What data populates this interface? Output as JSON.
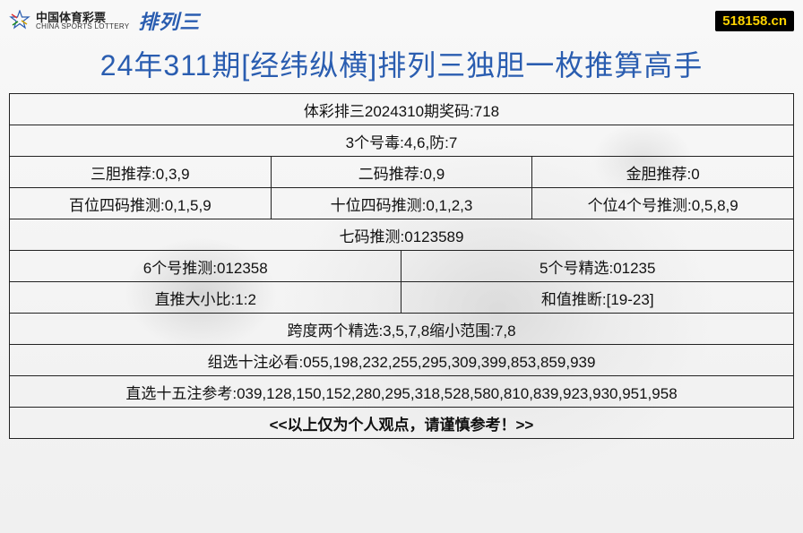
{
  "header": {
    "logo_cn": "中国体育彩票",
    "logo_en": "CHINA SPORTS LOTTERY",
    "brand": "排列三",
    "site_badge": "518158.cn"
  },
  "title": {
    "text": "24年311期[经纬纵横]排列三独胆一枚推算高手",
    "color": "#2a5db0"
  },
  "table": {
    "border_color": "#222222",
    "cell_font_size": 17,
    "rows": [
      {
        "cols": 1,
        "cells": [
          "体彩排三2024310期奖码:718"
        ]
      },
      {
        "cols": 1,
        "cells": [
          "3个号毒:4,6,防:7"
        ]
      },
      {
        "cols": 3,
        "cells": [
          "三胆推荐:0,3,9",
          "二码推荐:0,9",
          "金胆推荐:0"
        ]
      },
      {
        "cols": 3,
        "cells": [
          "百位四码推测:0,1,5,9",
          "十位四码推测:0,1,2,3",
          "个位4个号推测:0,5,8,9"
        ]
      },
      {
        "cols": 1,
        "cells": [
          "七码推测:0123589"
        ]
      },
      {
        "cols": 2,
        "cells": [
          "6个号推测:012358",
          "5个号精选:01235"
        ]
      },
      {
        "cols": 2,
        "cells": [
          "直推大小比:1:2",
          "和值推断:[19-23]"
        ]
      },
      {
        "cols": 1,
        "cells": [
          "跨度两个精选:3,5,7,8缩小范围:7,8"
        ]
      },
      {
        "cols": 1,
        "cells": [
          "组选十注必看:055,198,232,255,295,309,399,853,859,939"
        ]
      },
      {
        "cols": 1,
        "cells": [
          "直选十五注参考:039,128,150,152,280,295,318,528,580,810,839,923,930,951,958"
        ]
      },
      {
        "cols": 1,
        "cells": [
          "<<以上仅为个人观点，请谨慎参考！>>"
        ],
        "footer": true
      }
    ]
  }
}
